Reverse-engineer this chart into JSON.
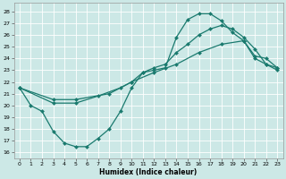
{
  "xlabel": "Humidex (Indice chaleur)",
  "bg_color": "#cce8e6",
  "grid_color": "#b0d8d4",
  "line_color": "#1a7a6e",
  "xlim": [
    -0.5,
    23.5
  ],
  "ylim": [
    15.5,
    28.7
  ],
  "xticks": [
    0,
    1,
    2,
    3,
    4,
    5,
    6,
    7,
    8,
    9,
    10,
    11,
    12,
    13,
    14,
    15,
    16,
    17,
    18,
    19,
    20,
    21,
    22,
    23
  ],
  "yticks": [
    16,
    17,
    18,
    19,
    20,
    21,
    22,
    23,
    24,
    25,
    26,
    27,
    28
  ],
  "curve1_x": [
    0,
    1,
    2,
    3,
    4,
    5,
    6,
    7,
    8,
    9,
    10,
    11,
    12,
    13,
    14,
    15,
    16,
    17,
    18,
    19,
    20,
    21,
    22,
    23
  ],
  "curve1_y": [
    21.5,
    20.0,
    19.5,
    17.8,
    16.8,
    16.5,
    16.5,
    17.2,
    18.0,
    19.5,
    21.5,
    22.8,
    23.0,
    23.2,
    25.8,
    27.3,
    27.8,
    27.8,
    27.2,
    26.2,
    25.5,
    24.0,
    23.5,
    23.0
  ],
  "curve2_x": [
    0,
    3,
    5,
    7,
    9,
    10,
    11,
    12,
    13,
    14,
    15,
    16,
    17,
    18,
    19,
    20,
    21,
    22,
    23
  ],
  "curve2_y": [
    21.5,
    20.2,
    20.2,
    20.8,
    21.5,
    22.0,
    22.8,
    23.2,
    23.5,
    24.5,
    25.2,
    26.0,
    26.5,
    26.8,
    26.5,
    25.8,
    24.8,
    23.5,
    23.2
  ],
  "curve3_x": [
    0,
    3,
    5,
    8,
    10,
    12,
    14,
    16,
    18,
    20,
    21,
    22,
    23
  ],
  "curve3_y": [
    21.5,
    20.5,
    20.5,
    21.0,
    22.0,
    22.8,
    23.5,
    24.5,
    25.2,
    25.5,
    24.2,
    24.0,
    23.2
  ]
}
